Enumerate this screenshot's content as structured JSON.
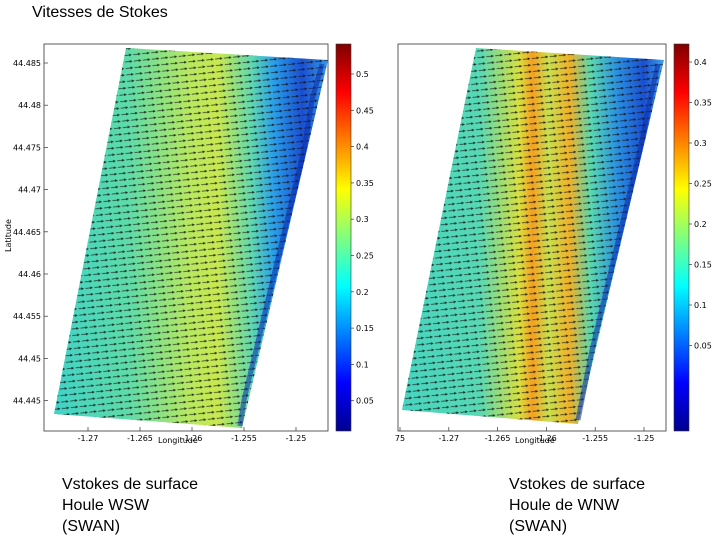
{
  "page_title": "Vitesses de Stokes",
  "captions": [
    "Vstokes de surface\nHoule WSW\n(SWAN)",
    "Vstokes de surface\nHoule de WNW\n(SWAN)"
  ],
  "chart_data": [
    {
      "type": "heatmap",
      "title": "",
      "xlabel": "Longitude",
      "ylabel": "Latitude",
      "x_ticks": [
        "-1.27",
        "-1.265",
        "-1.26",
        "-1.255",
        "-1.25"
      ],
      "y_ticks": [
        "44.485",
        "44.48",
        "44.475",
        "44.47",
        "44.465",
        "44.46",
        "44.455",
        "44.45",
        "44.445"
      ],
      "colorbar_ticks": [
        "0.5",
        "0.45",
        "0.4",
        "0.35",
        "0.3",
        "0.25",
        "0.2",
        "0.15",
        "0.1",
        "0.05"
      ],
      "colorbar_range": [
        0,
        0.55
      ],
      "overlay": "arrows pointing east",
      "colors": {
        "dominant": "#66e0a0",
        "maximum": "#f2e030",
        "shore": "#1a4fd0"
      }
    },
    {
      "type": "heatmap",
      "title": "",
      "xlabel": "Longitude",
      "ylabel": "",
      "x_ticks": [
        "75",
        "-1.27",
        "-1.265",
        "-1.26",
        "-1.255",
        "-1.25"
      ],
      "y_ticks": [],
      "colorbar_ticks": [
        "0.4",
        "0.35",
        "0.3",
        "0.25",
        "0.2",
        "0.15",
        "0.1",
        "0.05"
      ],
      "colorbar_range": [
        0,
        0.42
      ],
      "overlay": "arrows pointing east",
      "colors": {
        "dominant": "#5ad8b0",
        "maximum": "#f58020",
        "shore": "#1a4fd0"
      }
    }
  ]
}
